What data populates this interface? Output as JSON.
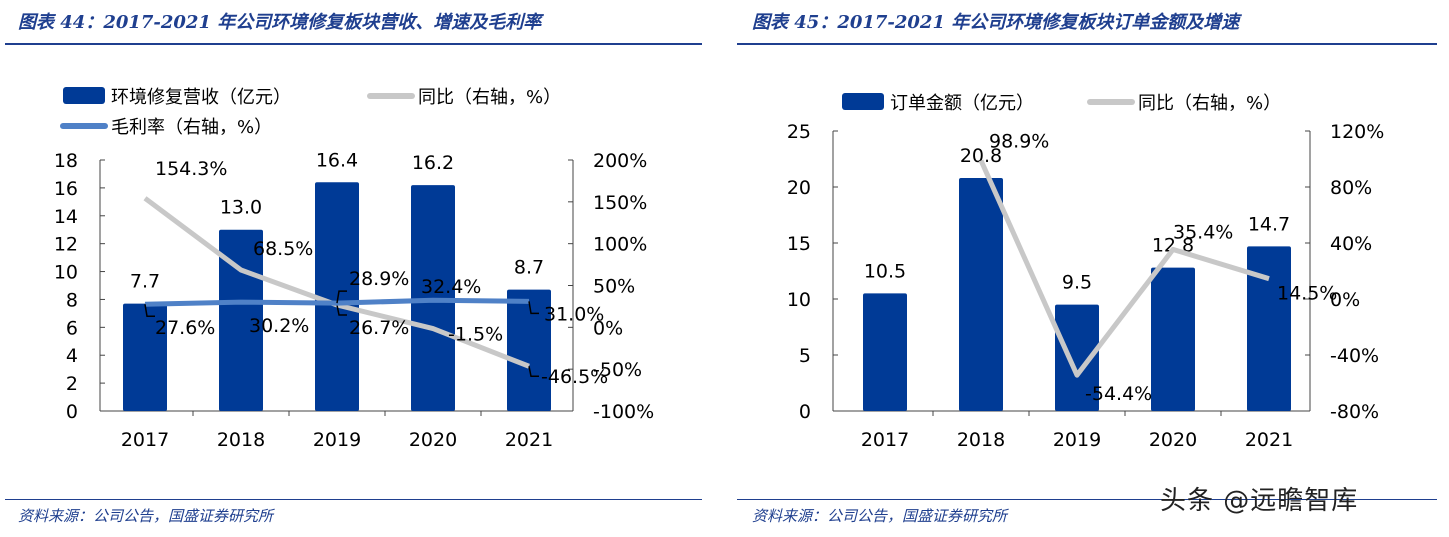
{
  "left_panel": {
    "title": "图表 44：2017-2021 年公司环境修复板块营收、增速及毛利率",
    "source": "资料来源：公司公告，国盛证券研究所"
  },
  "right_panel": {
    "title": "图表 45：2017-2021 年公司环境修复板块订单金额及增速",
    "source": "资料来源：公司公告，国盛证券研究所"
  },
  "watermark": "头条 @远瞻智库",
  "chart_data": [
    {
      "type": "bar+line",
      "categories": [
        "2017",
        "2018",
        "2019",
        "2020",
        "2021"
      ],
      "y_left": {
        "range": [
          0,
          18
        ],
        "ticks": [
          "0",
          "2",
          "4",
          "6",
          "8",
          "10",
          "12",
          "14",
          "16",
          "18"
        ]
      },
      "y_right": {
        "range": [
          -100,
          200
        ],
        "ticks": [
          "-100%",
          "-50%",
          "0%",
          "50%",
          "100%",
          "150%",
          "200%"
        ]
      },
      "legend_placement": "top",
      "grid": false,
      "series": [
        {
          "name": "环境修复营收（亿元）",
          "kind": "bar",
          "axis": "left",
          "color": "#003a96",
          "values": [
            7.7,
            13.0,
            16.4,
            16.2,
            8.7
          ],
          "labels": [
            "7.7",
            "13.0",
            "16.4",
            "16.2",
            "8.7"
          ]
        },
        {
          "name": "同比（右轴，%）",
          "kind": "line",
          "axis": "right",
          "color": "#c8c8c8",
          "values": [
            154.3,
            68.5,
            26.7,
            -1.5,
            -46.5
          ],
          "labels": [
            "154.3%",
            "68.5%",
            "26.7%",
            "-1.5%",
            "-46.5%"
          ]
        },
        {
          "name": "毛利率（右轴，%）",
          "kind": "line",
          "axis": "right",
          "color": "#4f81c7",
          "values": [
            27.6,
            30.2,
            28.9,
            32.4,
            31.0
          ],
          "labels": [
            "27.6%",
            "30.2%",
            "28.9%",
            "32.4%",
            "31.0%"
          ]
        }
      ]
    },
    {
      "type": "bar+line",
      "categories": [
        "2017",
        "2018",
        "2019",
        "2020",
        "2021"
      ],
      "y_left": {
        "range": [
          0,
          25
        ],
        "ticks": [
          "0",
          "5",
          "10",
          "15",
          "20",
          "25"
        ]
      },
      "y_right": {
        "range": [
          -80,
          120
        ],
        "ticks": [
          "-80%",
          "-40%",
          "0%",
          "40%",
          "80%",
          "120%"
        ]
      },
      "legend_placement": "top",
      "grid": false,
      "series": [
        {
          "name": "订单金额（亿元）",
          "kind": "bar",
          "axis": "left",
          "color": "#003a96",
          "values": [
            10.5,
            20.8,
            9.5,
            12.8,
            14.7
          ],
          "labels": [
            "10.5",
            "20.8",
            "9.5",
            "12.8",
            "14.7"
          ]
        },
        {
          "name": "同比（右轴，%）",
          "kind": "line",
          "axis": "right",
          "color": "#c8c8c8",
          "values": [
            null,
            98.9,
            -54.4,
            35.4,
            14.5
          ],
          "labels": [
            "",
            "98.9%",
            "-54.4%",
            "35.4%",
            "14.5%"
          ]
        }
      ]
    }
  ]
}
